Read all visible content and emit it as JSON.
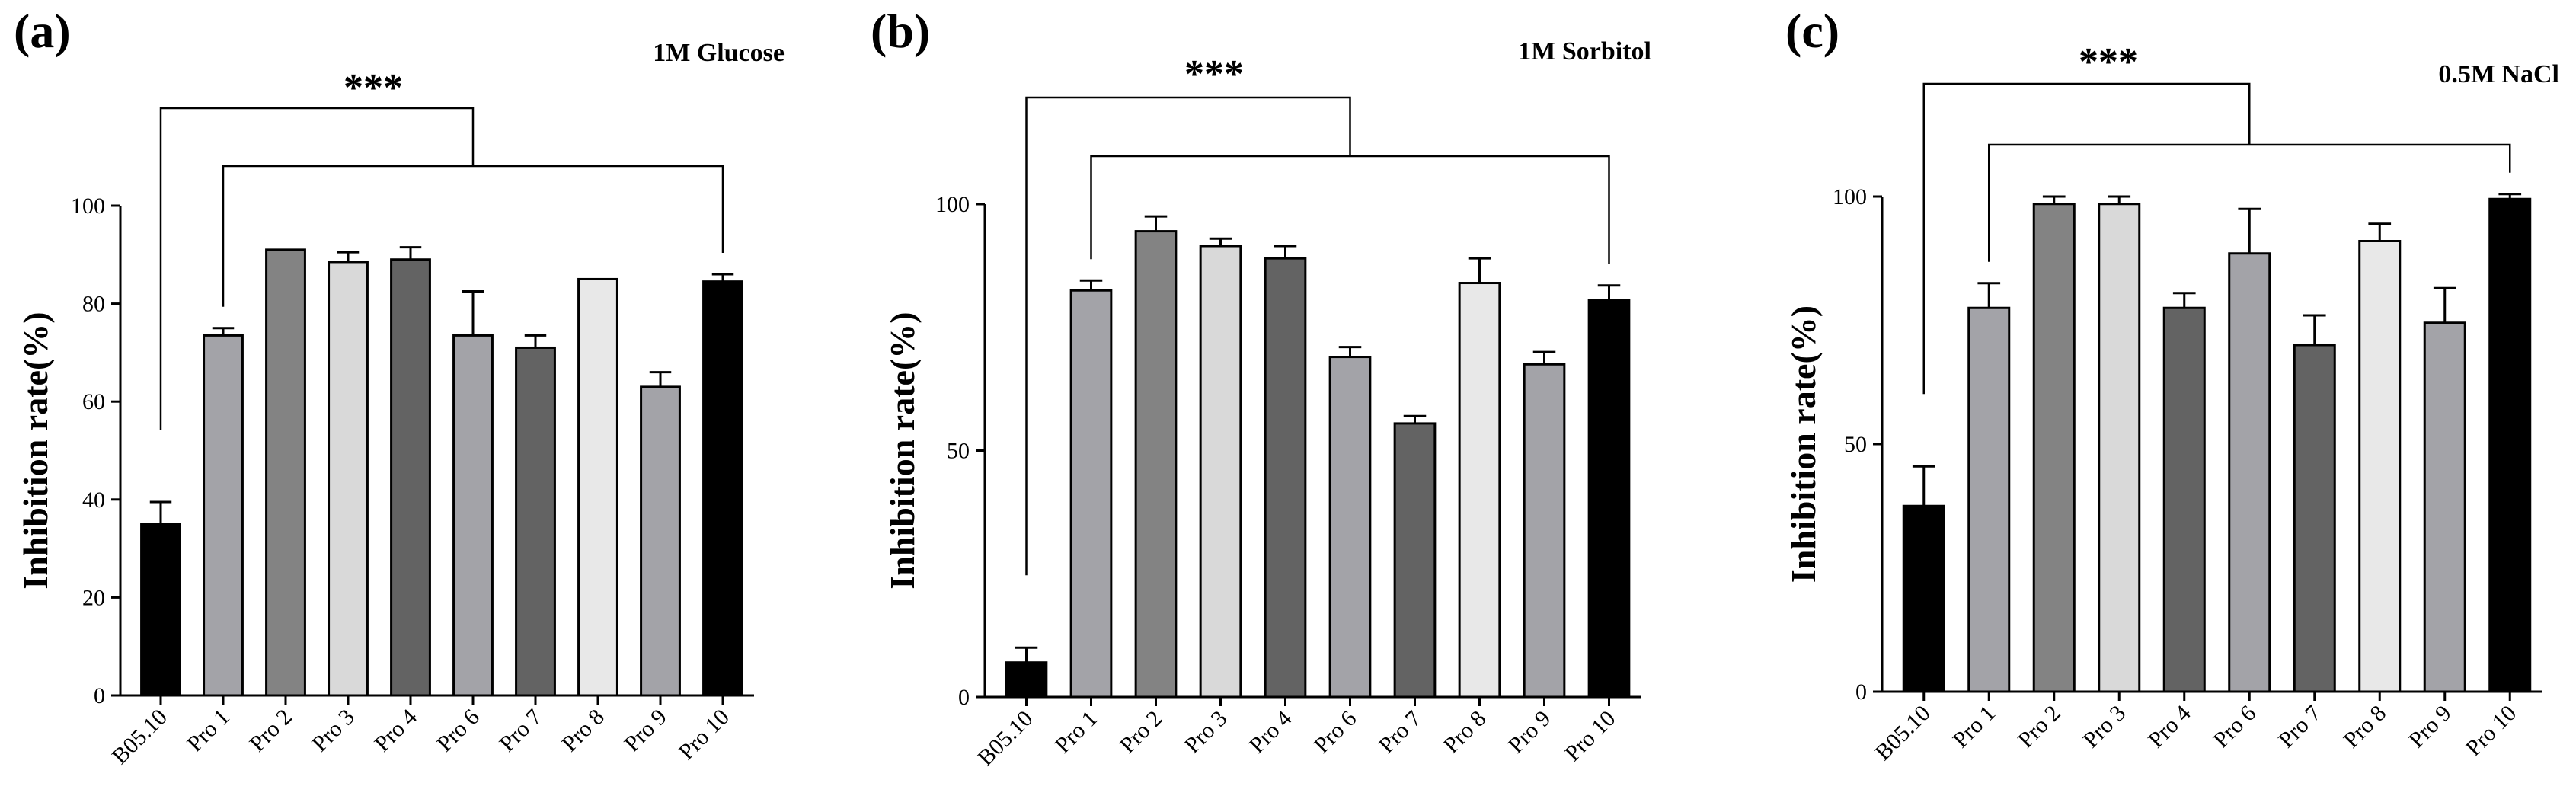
{
  "chart_data": [
    {
      "type": "bar",
      "panel_label": "(a)",
      "title": "1M Glucose",
      "ylabel": "Inhibition rate(%)",
      "ylim": [
        0,
        100
      ],
      "yticks": [
        "0",
        "20",
        "40",
        "60",
        "80",
        "100"
      ],
      "categories": [
        "B05.10",
        "Pro 1",
        "Pro 2",
        "Pro 3",
        "Pro 4",
        "Pro 6",
        "Pro 7",
        "Pro 8",
        "Pro 9",
        "Pro 10"
      ],
      "values": [
        35,
        73.5,
        91,
        88.5,
        89,
        73.5,
        71,
        85,
        63,
        84.5
      ],
      "errors": [
        4.5,
        1.5,
        0,
        2,
        2.5,
        9,
        2.5,
        0,
        3,
        1.5
      ],
      "significance": "***"
    },
    {
      "type": "bar",
      "panel_label": "(b)",
      "title": "1M Sorbitol",
      "ylabel": "Inhibition rate(%)",
      "ylim": [
        0,
        100
      ],
      "yticks": [
        "0",
        "50",
        "100"
      ],
      "categories": [
        "B05.10",
        "Pro 1",
        "Pro 2",
        "Pro 3",
        "Pro 4",
        "Pro 6",
        "Pro 7",
        "Pro 8",
        "Pro 9",
        "Pro 10"
      ],
      "values": [
        7,
        82.5,
        94.5,
        91.5,
        89,
        69,
        55.5,
        84,
        67.5,
        80.5
      ],
      "errors": [
        3,
        2,
        3,
        1.5,
        2.5,
        2,
        1.5,
        5,
        2.5,
        3
      ],
      "significance": "***"
    },
    {
      "type": "bar",
      "panel_label": "(c)",
      "title": "0.5M NaCl",
      "ylabel": "Inhibition rate(%)",
      "ylim": [
        0,
        100
      ],
      "yticks": [
        "0",
        "50",
        "100"
      ],
      "categories": [
        "B05.10",
        "Pro 1",
        "Pro 2",
        "Pro 3",
        "Pro 4",
        "Pro 6",
        "Pro 7",
        "Pro 8",
        "Pro 9",
        "Pro 10"
      ],
      "values": [
        37.5,
        77.5,
        98.5,
        98.5,
        77.5,
        88.5,
        70,
        91,
        74.5,
        99.5
      ],
      "errors": [
        8,
        5,
        1.5,
        1.5,
        3,
        9,
        6,
        3.5,
        7,
        1
      ],
      "significance": "***"
    }
  ],
  "colors": {
    "B05.10": "#000000",
    "Pro 1": "#a3a3a8",
    "Pro 2": "#838383",
    "Pro 3": "#d9d9d9",
    "Pro 4": "#636363",
    "Pro 6": "#a3a3a8",
    "Pro 7": "#636363",
    "Pro 8": "#e8e8e8",
    "Pro 9": "#a3a3a8",
    "Pro 10": "#000000"
  }
}
